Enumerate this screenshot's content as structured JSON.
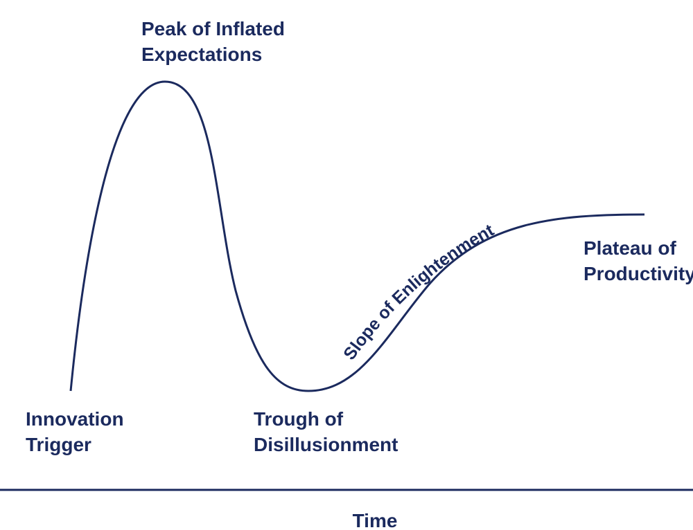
{
  "phases": [
    {
      "lines": [
        "Innovation",
        "Trigger"
      ]
    },
    {
      "lines": [
        "Peak of Inflated",
        "Expectations"
      ]
    },
    {
      "lines": [
        "Trough of",
        "Disillusionment"
      ]
    },
    {
      "lines": [
        "Slope of Enlightenment"
      ]
    },
    {
      "lines": [
        "Plateau of",
        "Productivity"
      ]
    }
  ],
  "x_axis": {
    "label": "Time"
  }
}
